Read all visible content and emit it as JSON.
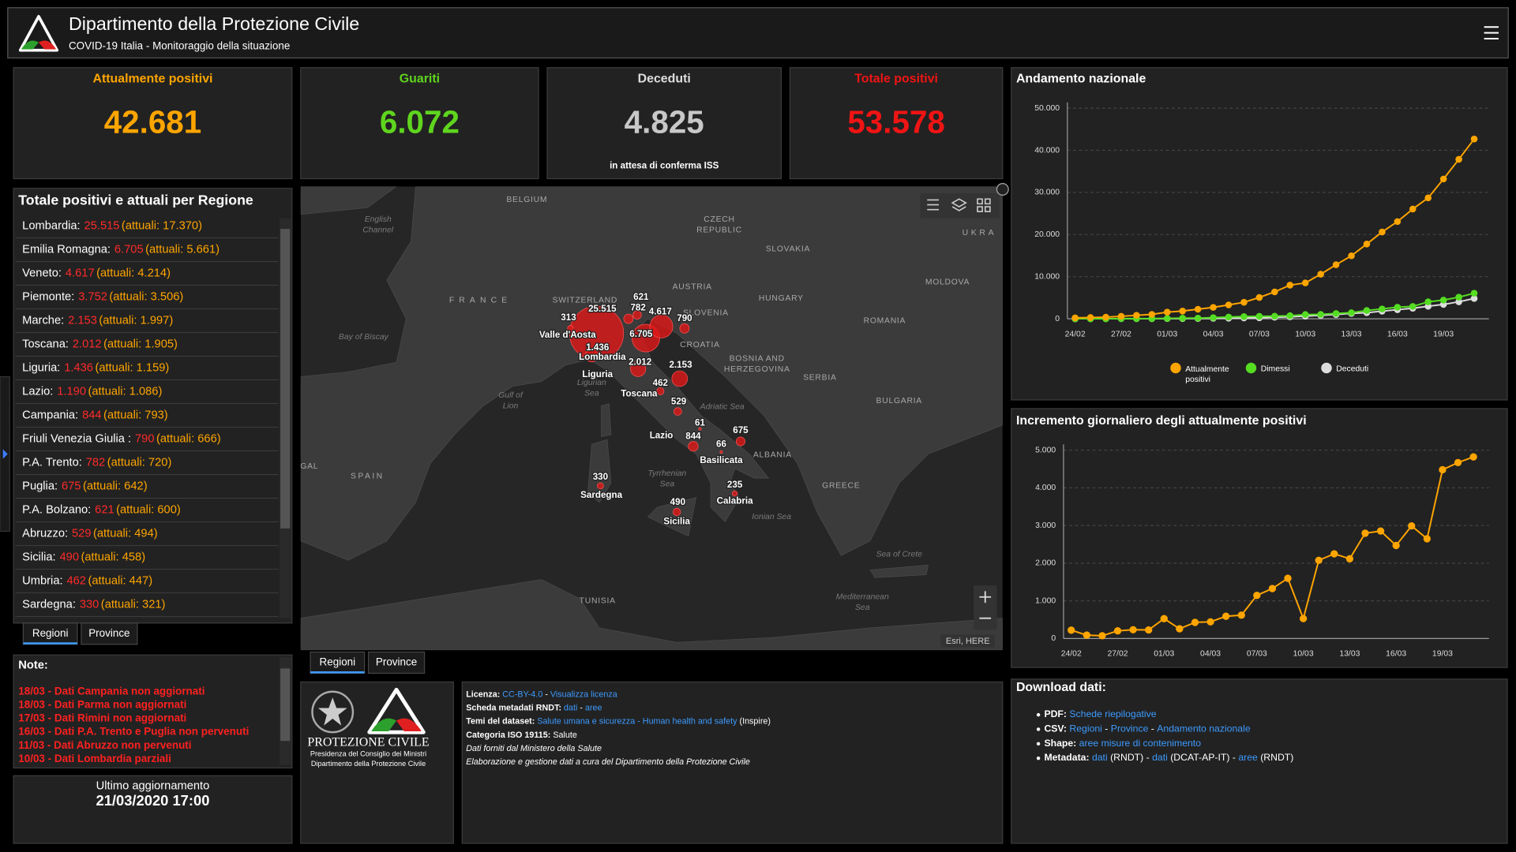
{
  "header": {
    "title": "Dipartimento della Protezione Civile",
    "subtitle": "COVID-19 Italia - Monitoraggio della situazione"
  },
  "kpis": [
    {
      "label": "Attualmente positivi",
      "value": "42.681",
      "color": "#ffa500"
    },
    {
      "label": "Guariti",
      "value": "6.072",
      "color": "#5fd51e"
    },
    {
      "label": "Deceduti",
      "value": "4.825",
      "note": "in attesa di conferma ISS",
      "color": "#c8c8c8"
    },
    {
      "label": "Totale positivi",
      "value": "53.578",
      "color": "#f01414"
    }
  ],
  "region_list": {
    "title": "Totale positivi e attuali per Regione",
    "rows": [
      {
        "name": "Lombardia:",
        "total": "25.515",
        "active": "(attuali: 17.370)"
      },
      {
        "name": "Emilia Romagna:",
        "total": "6.705",
        "active": "(attuali: 5.661)"
      },
      {
        "name": "Veneto:",
        "total": "4.617",
        "active": "(attuali: 4.214)"
      },
      {
        "name": "Piemonte:",
        "total": "3.752",
        "active": "(attuali: 3.506)"
      },
      {
        "name": "Marche:",
        "total": "2.153",
        "active": "(attuali: 1.997)"
      },
      {
        "name": "Toscana:",
        "total": "2.012",
        "active": "(attuali: 1.905)"
      },
      {
        "name": "Liguria:",
        "total": "1.436",
        "active": "(attuali: 1.159)"
      },
      {
        "name": "Lazio:",
        "total": "1.190",
        "active": "(attuali: 1.086)"
      },
      {
        "name": "Campania:",
        "total": "844",
        "active": "(attuali: 793)"
      },
      {
        "name": "Friuli Venezia Giulia :",
        "total": "790",
        "active": "(attuali: 666)"
      },
      {
        "name": "P.A. Trento:",
        "total": "782",
        "active": "(attuali: 720)"
      },
      {
        "name": "Puglia:",
        "total": "675",
        "active": "(attuali: 642)"
      },
      {
        "name": "P.A. Bolzano:",
        "total": "621",
        "active": "(attuali: 600)"
      },
      {
        "name": "Abruzzo:",
        "total": "529",
        "active": "(attuali: 494)"
      },
      {
        "name": "Sicilia:",
        "total": "490",
        "active": "(attuali: 458)"
      },
      {
        "name": "Umbria:",
        "total": "462",
        "active": "(attuali: 447)"
      },
      {
        "name": "Sardegna:",
        "total": "330",
        "active": "(attuali: 321)"
      }
    ],
    "tabs": [
      "Regioni",
      "Province"
    ]
  },
  "map": {
    "countries": [
      "BELGIUM",
      [
        "CZECH",
        "REPUBLIC"
      ],
      "UKRA",
      "SLOVAKIA",
      "FRANCE",
      "SWITZERLAND",
      "AUSTRIA",
      "HUNGARY",
      "MOLDOVA",
      "SLOVENIA",
      "CROATIA",
      "ROMANIA",
      [
        "BOSNIA AND",
        "HERZEGOVINA"
      ],
      "SERBIA",
      "BULGARIA",
      "ALBANIA",
      "GREECE",
      "SPAIN",
      "TUNISIA",
      "GAL"
    ],
    "seas": [
      [
        "English",
        "Channel"
      ],
      "Bay of Biscay",
      [
        "Gulf of",
        "Lion"
      ],
      [
        "Ligurian",
        "Sea"
      ],
      "Adriatic Sea",
      [
        "Tyrrhenian",
        "Sea"
      ],
      "Ionian Sea",
      "Sea of Crete",
      [
        "Mediterranean",
        "Sea"
      ]
    ],
    "regions": [
      "Valle d'Aosta",
      "Lombardia",
      "Liguria",
      "Toscana",
      "Lazio",
      "Basilicata",
      "Sardegna",
      "Sicilia",
      "Calabria"
    ],
    "bubbles": [
      {
        "label": "25.515",
        "value": 25515
      },
      {
        "label": "6.705",
        "value": 6705
      },
      {
        "label": "4.617",
        "value": 4617
      },
      {
        "label": "2.153",
        "value": 2153
      },
      {
        "label": "2.012",
        "value": 2012
      },
      {
        "label": "1.436",
        "value": 1436
      },
      {
        "label": "790",
        "value": 790
      },
      {
        "label": "782",
        "value": 782
      },
      {
        "label": "621",
        "value": 621
      },
      {
        "label": "313",
        "value": 313
      },
      {
        "label": "462",
        "value": 462
      },
      {
        "label": "529",
        "value": 529
      },
      {
        "label": "61",
        "value": 61
      },
      {
        "label": "675",
        "value": 675
      },
      {
        "label": "844",
        "value": 844
      },
      {
        "label": "66",
        "value": 66
      },
      {
        "label": "330",
        "value": 330
      },
      {
        "label": "235",
        "value": 235
      },
      {
        "label": "490",
        "value": 490
      }
    ],
    "bubble_color": "#e01818",
    "attribution": "Esri, HERE",
    "tabs": [
      "Regioni",
      "Province"
    ]
  },
  "notes": {
    "title": "Note:",
    "items": [
      "18/03 - Dati Campania non aggiornati",
      "18/03 - Dati Parma non aggiornati",
      "17/03 - Dati Rimini non aggiornati",
      "16/03 - Dati P.A. Trento e Puglia non pervenuti",
      "11/03 - Dati Abruzzo non pervenuti",
      "10/03 - Dati Lombardia parziali"
    ]
  },
  "update": {
    "label": "Ultimo aggiornamento",
    "value": "21/03/2020 17:00"
  },
  "logo": {
    "name": "PROTEZIONE CIVILE",
    "lines": [
      "Presidenza del Consiglio dei Ministri",
      "Dipartimento della Protezione Civile"
    ]
  },
  "license": {
    "lines": [
      [
        {
          "text": "Licenza:",
          "bold": true
        },
        {
          "text": " "
        },
        {
          "text": "CC-BY-4.0",
          "link": true
        },
        {
          "text": " - "
        },
        {
          "text": "Visualizza licenza",
          "link": true
        }
      ],
      [
        {
          "text": "Scheda metadati RNDT:",
          "bold": true
        },
        {
          "text": " "
        },
        {
          "text": "dati",
          "link": true
        },
        {
          "text": " - "
        },
        {
          "text": "aree",
          "link": true
        }
      ],
      [
        {
          "text": "Temi del dataset:",
          "bold": true
        },
        {
          "text": " "
        },
        {
          "text": "Salute umana e sicurezza - Human health and safety",
          "link": true
        },
        {
          "text": " (Inspire)"
        }
      ],
      [
        {
          "text": "Categoria ISO 19115:",
          "bold": true
        },
        {
          "text": " Salute"
        }
      ],
      [
        {
          "text": "Dati forniti dal Ministero della Salute",
          "italic": true
        }
      ],
      [
        {
          "text": "Elaborazione e gestione dati a cura del Dipartimento della Protezione Civile",
          "italic": true
        }
      ]
    ]
  },
  "national_chart": {
    "type": "line",
    "title": "Andamento nazionale",
    "categories": [
      "24/02",
      null,
      null,
      "27/02",
      null,
      null,
      "01/03",
      null,
      null,
      "04/03",
      null,
      null,
      "07/03",
      null,
      null,
      "10/03",
      null,
      null,
      "13/03",
      null,
      null,
      "16/03",
      null,
      null,
      "19/03",
      null,
      null
    ],
    "series": [
      {
        "name": "Attualmente positivi",
        "color": "#ffa500",
        "values": [
          221,
          311,
          385,
          588,
          821,
          1049,
          1577,
          1835,
          2263,
          2706,
          3296,
          3916,
          5061,
          6387,
          7985,
          8514,
          10590,
          12839,
          14955,
          17750,
          20603,
          23073,
          26062,
          28710,
          33190,
          37860,
          42681
        ]
      },
      {
        "name": "Dimessi",
        "color": "#55dd22",
        "values": [
          1,
          1,
          3,
          45,
          46,
          50,
          83,
          149,
          160,
          276,
          414,
          523,
          589,
          622,
          724,
          1004,
          1045,
          1258,
          1439,
          1966,
          2335,
          2749,
          2941,
          4025,
          4440,
          5129,
          6072
        ]
      },
      {
        "name": "Deceduti",
        "color": "#dddddd",
        "values": [
          7,
          10,
          12,
          17,
          21,
          29,
          34,
          52,
          79,
          107,
          148,
          197,
          233,
          366,
          463,
          631,
          827,
          1016,
          1266,
          1441,
          1809,
          2158,
          2503,
          2978,
          3405,
          4032,
          4825
        ]
      }
    ],
    "ylim": [
      0,
      50000
    ],
    "yticks": [
      0,
      {
        "value": 10000,
        "label": "10.000"
      },
      {
        "value": 20000,
        "label": "20.000"
      },
      {
        "value": 30000,
        "label": "30.000"
      },
      {
        "value": 40000,
        "label": "40.000"
      },
      {
        "value": 50000,
        "label": "50.000"
      }
    ],
    "grid": true,
    "legend": "bottom"
  },
  "daily_chart": {
    "type": "line",
    "title": "Incremento giornaliero degli attualmente positivi",
    "categories": [
      "24/02",
      null,
      null,
      "27/02",
      null,
      null,
      "01/03",
      null,
      null,
      "04/03",
      null,
      null,
      "07/03",
      null,
      null,
      "10/03",
      null,
      null,
      "13/03",
      null,
      null,
      "16/03",
      null,
      null,
      "19/03",
      null,
      null
    ],
    "values": [
      221,
      90,
      74,
      203,
      233,
      228,
      528,
      258,
      428,
      443,
      590,
      620,
      1145,
      1326,
      1598,
      529,
      2076,
      2249,
      2116,
      2795,
      2853,
      2470,
      2989,
      2648,
      4480,
      4670,
      4821
    ],
    "color": "#ffa500",
    "ylim": [
      0,
      5000
    ],
    "yticks": [
      0,
      {
        "value": 1000,
        "label": "1.000"
      },
      {
        "value": 2000,
        "label": "2.000"
      },
      {
        "value": 3000,
        "label": "3.000"
      },
      {
        "value": 4000,
        "label": "4.000"
      },
      {
        "value": 5000,
        "label": "5.000"
      }
    ],
    "grid": true
  },
  "download": {
    "title": "Download dati:",
    "items": [
      [
        {
          "text": "PDF:",
          "bold": true
        },
        {
          "text": " "
        },
        {
          "text": "Schede riepilogative",
          "link": true
        }
      ],
      [
        {
          "text": "CSV:",
          "bold": true
        },
        {
          "text": " "
        },
        {
          "text": "Regioni",
          "link": true
        },
        {
          "text": " - "
        },
        {
          "text": "Province",
          "link": true
        },
        {
          "text": " - "
        },
        {
          "text": "Andamento nazionale",
          "link": true
        }
      ],
      [
        {
          "text": "Shape:",
          "bold": true
        },
        {
          "text": " "
        },
        {
          "text": "aree misure di contenimento",
          "link": true
        }
      ],
      [
        {
          "text": "Metadata:",
          "bold": true
        },
        {
          "text": " "
        },
        {
          "text": "dati",
          "link": true
        },
        {
          "text": " (RNDT) - "
        },
        {
          "text": "dati",
          "link": true
        },
        {
          "text": " (DCAT-AP-IT) - "
        },
        {
          "text": "aree",
          "link": true
        },
        {
          "text": " (RNDT)"
        }
      ]
    ]
  }
}
